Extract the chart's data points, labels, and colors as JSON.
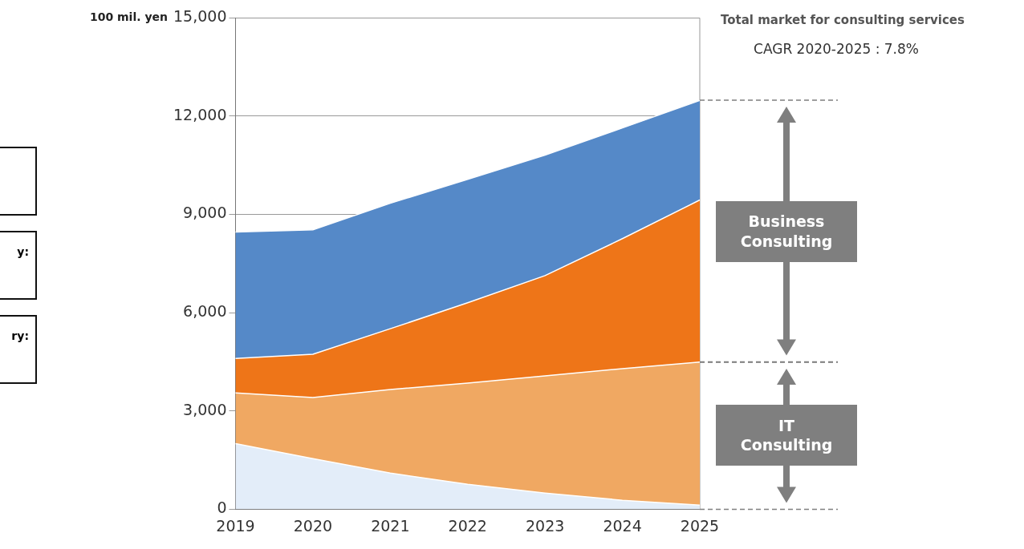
{
  "chart_data": {
    "type": "area",
    "title": "Total market for consulting services",
    "subtitle": "CAGR 2020-2025 : 7.8%",
    "ylabel": "100 mil. yen",
    "categories": [
      "2019",
      "2020",
      "2021",
      "2022",
      "2023",
      "2024",
      "2025"
    ],
    "stacked": true,
    "series": [
      {
        "color": "#e3edf9",
        "values": [
          2000,
          1540,
          1100,
          760,
          490,
          270,
          120
        ]
      },
      {
        "color": "#f0a862",
        "values": [
          1550,
          1870,
          2550,
          3090,
          3580,
          4020,
          4370
        ]
      },
      {
        "color": "#ee7518",
        "values": [
          1050,
          1320,
          1860,
          2450,
          3060,
          3970,
          4950
        ]
      },
      {
        "color": "#5589c8",
        "values": [
          3860,
          3800,
          3830,
          3770,
          3680,
          3380,
          3040
        ]
      }
    ],
    "ylim": [
      0,
      15000
    ],
    "yticks": [
      {
        "value": 0,
        "label": "0"
      },
      {
        "value": 3000,
        "label": "3,000"
      },
      {
        "value": 6000,
        "label": "6,000"
      },
      {
        "value": 9000,
        "label": "9,000"
      },
      {
        "value": 12000,
        "label": "12,000"
      },
      {
        "value": 15000,
        "label": "15,000"
      }
    ],
    "grid": "y",
    "legend": false,
    "annotations": [
      "Business Consulting",
      "IT Consulting",
      "y:",
      "ry:"
    ]
  }
}
